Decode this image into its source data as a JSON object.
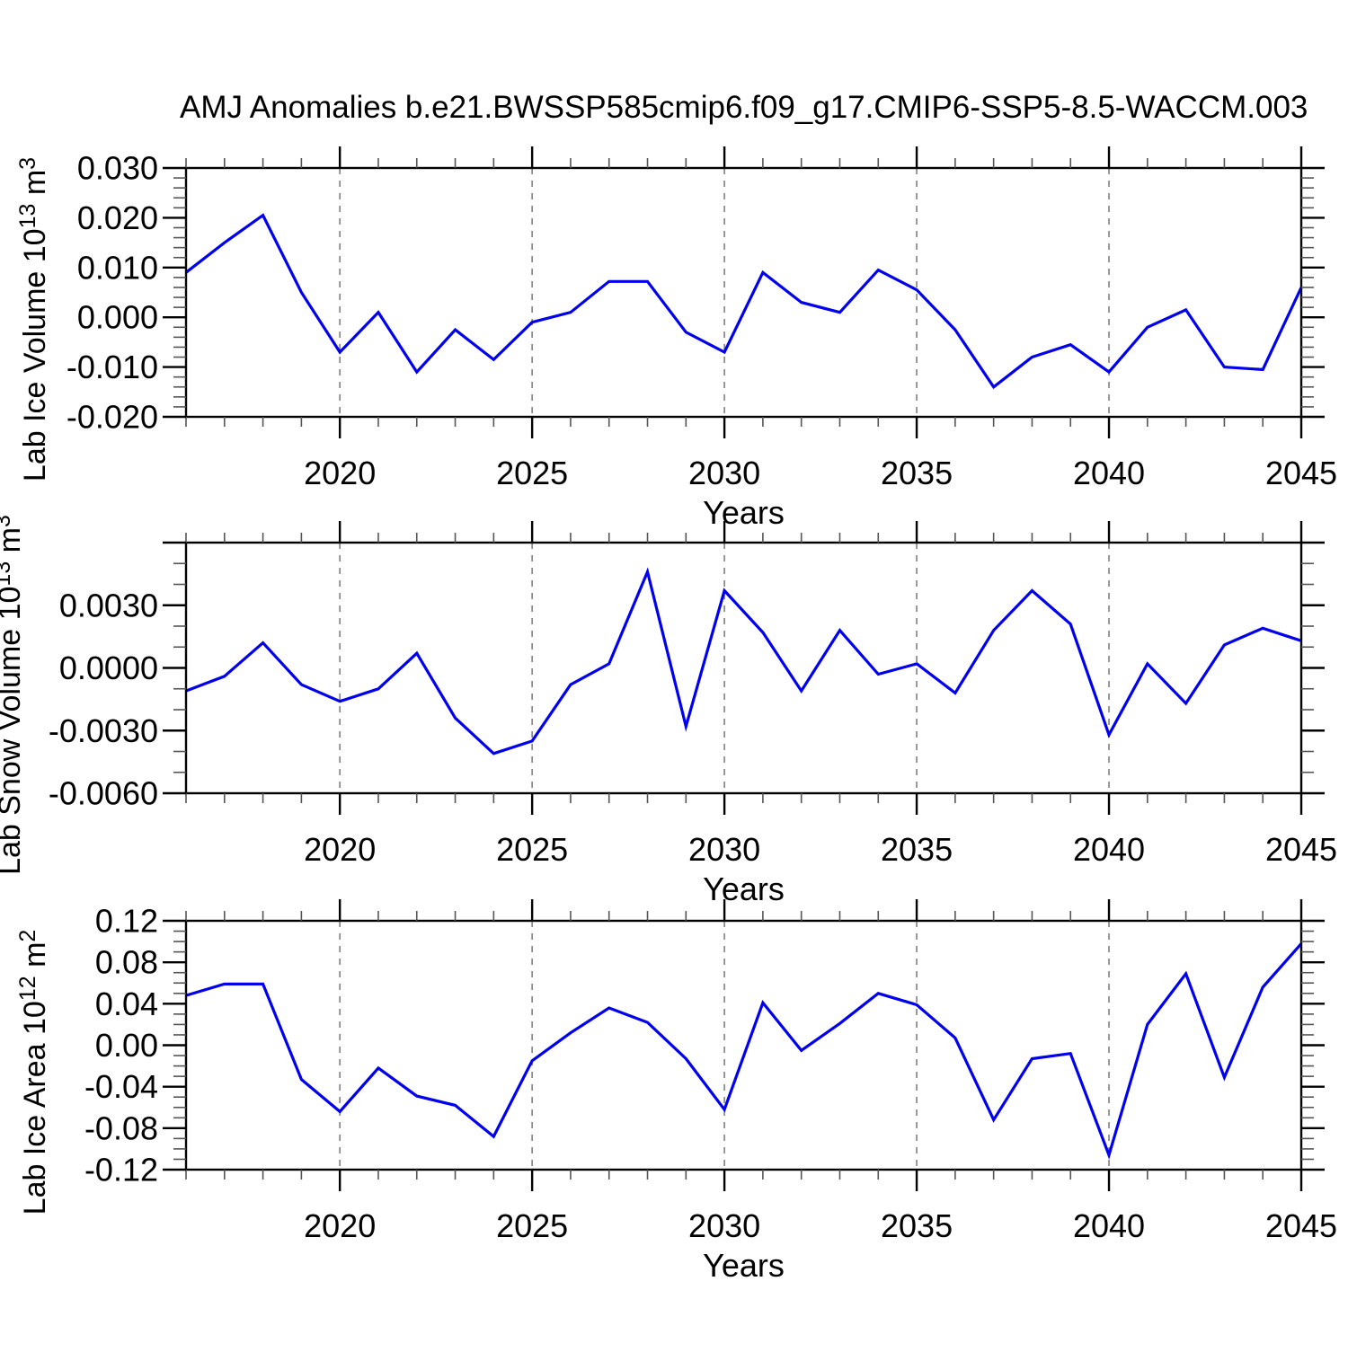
{
  "title": "AMJ Anomalies b.e21.BWSSP585cmip6.f09_g17.CMIP6-SSP5-8.5-WACCM.003",
  "style": {
    "background": "#ffffff",
    "line_color": "#0000ee",
    "axis_color": "#000000",
    "minor_tick_color": "#555555",
    "grid_color": "#808080",
    "text_color": "#000000"
  },
  "x_axis": {
    "label": "Years",
    "range": [
      2016,
      2045
    ],
    "major_ticks": [
      2020,
      2025,
      2030,
      2035,
      2040,
      2045
    ],
    "major_tick_labels": [
      "2020",
      "2025",
      "2030",
      "2035",
      "2040",
      "2045"
    ],
    "grid_years": [
      2020,
      2025,
      2030,
      2035,
      2040
    ],
    "minor_step": 1
  },
  "chart_data": [
    {
      "type": "line",
      "name": "lab-ice-volume",
      "ylabel": "Lab Ice Volume 10^13 m^3",
      "ylabel_segments": [
        {
          "t": "Lab Ice Volume 10",
          "sup": false
        },
        {
          "t": "13",
          "sup": true
        },
        {
          "t": " m",
          "sup": false
        },
        {
          "t": "3",
          "sup": true
        }
      ],
      "xlabel": "Years",
      "ylim": [
        -0.02,
        0.03
      ],
      "grid": "vertical-dashed",
      "legend": "none",
      "y_major_ticks": [
        0.03,
        0.02,
        0.01,
        0.0,
        -0.01,
        -0.02
      ],
      "y_tick_labels": [
        "0.030",
        "0.020",
        "0.010",
        "0.000",
        "-0.010",
        "-0.020"
      ],
      "y_minor_step": 0.002,
      "x": [
        2016,
        2017,
        2018,
        2019,
        2020,
        2021,
        2022,
        2023,
        2024,
        2025,
        2026,
        2027,
        2028,
        2029,
        2030,
        2031,
        2032,
        2033,
        2034,
        2035,
        2036,
        2037,
        2038,
        2039,
        2040,
        2041,
        2042,
        2043,
        2044,
        2045
      ],
      "values": [
        0.009,
        0.015,
        0.0205,
        0.005,
        -0.007,
        0.001,
        -0.011,
        -0.0025,
        -0.0085,
        -0.001,
        0.001,
        0.0072,
        0.0072,
        -0.003,
        -0.007,
        0.009,
        0.003,
        0.001,
        0.0095,
        0.0055,
        -0.0025,
        -0.014,
        -0.008,
        -0.0055,
        -0.011,
        -0.002,
        0.0015,
        -0.01,
        -0.0105,
        0.006
      ]
    },
    {
      "type": "line",
      "name": "lab-snow-volume",
      "ylabel": "Lab Snow Volume 10^13 m^3",
      "ylabel_segments": [
        {
          "t": "Lab Snow Volume 10",
          "sup": false
        },
        {
          "t": "13",
          "sup": true
        },
        {
          "t": " m",
          "sup": false
        },
        {
          "t": "3",
          "sup": true
        }
      ],
      "xlabel": "Years",
      "ylim": [
        -0.006,
        0.006
      ],
      "grid": "vertical-dashed",
      "legend": "none",
      "y_major_ticks": [
        0.006,
        0.003,
        0.0,
        -0.003,
        -0.006
      ],
      "y_tick_labels": [
        "",
        "0.0030",
        "0.0000",
        "-0.0030",
        "-0.0060"
      ],
      "y_minor_step": 0.001,
      "x": [
        2016,
        2017,
        2018,
        2019,
        2020,
        2021,
        2022,
        2023,
        2024,
        2025,
        2026,
        2027,
        2028,
        2029,
        2030,
        2031,
        2032,
        2033,
        2034,
        2035,
        2036,
        2037,
        2038,
        2039,
        2040,
        2041,
        2042,
        2043,
        2044,
        2045
      ],
      "values": [
        -0.0011,
        -0.0004,
        0.0012,
        -0.0008,
        -0.0016,
        -0.001,
        0.0007,
        -0.0024,
        -0.0041,
        -0.0035,
        -0.0008,
        0.0002,
        0.0046,
        -0.0028,
        0.0037,
        0.0017,
        -0.0011,
        0.0018,
        -0.0003,
        0.0002,
        -0.0012,
        0.0018,
        0.0037,
        0.0021,
        -0.0032,
        0.0002,
        -0.0017,
        0.0011,
        0.0019,
        0.0013
      ]
    },
    {
      "type": "line",
      "name": "lab-ice-area",
      "ylabel": "Lab Ice Area 10^12 m^2",
      "ylabel_segments": [
        {
          "t": "Lab Ice Area 10",
          "sup": false
        },
        {
          "t": "12",
          "sup": true
        },
        {
          "t": " m",
          "sup": false
        },
        {
          "t": "2",
          "sup": true
        }
      ],
      "xlabel": "Years",
      "ylim": [
        -0.12,
        0.12
      ],
      "grid": "vertical-dashed",
      "legend": "none",
      "y_major_ticks": [
        0.12,
        0.08,
        0.04,
        0.0,
        -0.04,
        -0.08,
        -0.12
      ],
      "y_tick_labels": [
        "0.12",
        "0.08",
        "0.04",
        "0.00",
        "-0.04",
        "-0.08",
        "-0.12"
      ],
      "y_minor_step": 0.01,
      "x": [
        2016,
        2017,
        2018,
        2019,
        2020,
        2021,
        2022,
        2023,
        2024,
        2025,
        2026,
        2027,
        2028,
        2029,
        2030,
        2031,
        2032,
        2033,
        2034,
        2035,
        2036,
        2037,
        2038,
        2039,
        2040,
        2041,
        2042,
        2043,
        2044,
        2045
      ],
      "values": [
        0.048,
        0.059,
        0.059,
        -0.033,
        -0.064,
        -0.022,
        -0.049,
        -0.058,
        -0.088,
        -0.015,
        0.012,
        0.036,
        0.022,
        -0.013,
        -0.062,
        0.041,
        -0.005,
        0.021,
        0.05,
        0.039,
        0.007,
        -0.072,
        -0.013,
        -0.008,
        -0.106,
        0.02,
        0.069,
        -0.031,
        0.056,
        0.098
      ]
    }
  ]
}
